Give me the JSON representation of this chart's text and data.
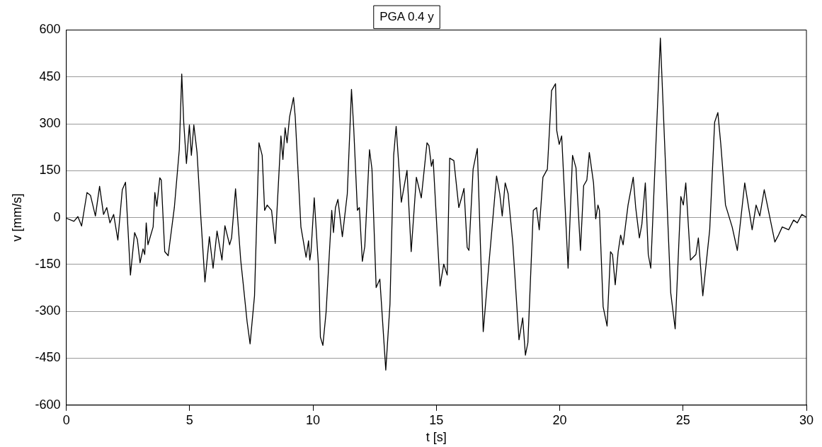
{
  "chart_data": {
    "type": "line",
    "title": "PGA 0.4 y",
    "xlabel": "t [s]",
    "ylabel": "v [mm/s]",
    "xlim": [
      0,
      30
    ],
    "xticks": [
      0,
      5,
      10,
      15,
      20,
      25,
      30
    ],
    "ylim": [
      -600,
      600
    ],
    "yticks": [
      -600,
      -450,
      -300,
      -150,
      0,
      150,
      300,
      450,
      600
    ],
    "grid": "y",
    "legend": false,
    "marker": "none",
    "line_style": "solid",
    "series": [
      {
        "color": "#000000",
        "x": [
          0,
          0.31,
          0.47,
          0.62,
          0.84,
          0.98,
          1.18,
          1.35,
          1.51,
          1.64,
          1.77,
          1.92,
          2.09,
          2.27,
          2.4,
          2.6,
          2.77,
          2.88,
          2.99,
          3.11,
          3.18,
          3.24,
          3.31,
          3.52,
          3.59,
          3.67,
          3.79,
          3.85,
          3.99,
          4.13,
          4.38,
          4.58,
          4.68,
          4.76,
          4.87,
          4.99,
          5.07,
          5.17,
          5.3,
          5.45,
          5.62,
          5.8,
          5.95,
          6.11,
          6.31,
          6.43,
          6.62,
          6.7,
          6.86,
          7.07,
          7.17,
          7.33,
          7.45,
          7.63,
          7.81,
          7.94,
          8.04,
          8.14,
          8.32,
          8.47,
          8.7,
          8.78,
          8.87,
          8.95,
          9.05,
          9.21,
          9.28,
          9.51,
          9.72,
          9.82,
          9.87,
          9.92,
          10.05,
          10.22,
          10.3,
          10.4,
          10.53,
          10.76,
          10.83,
          10.91,
          11.01,
          11.19,
          11.39,
          11.56,
          11.65,
          11.8,
          11.88,
          12,
          12.1,
          12.29,
          12.39,
          12.56,
          12.71,
          12.95,
          13.12,
          13.27,
          13.37,
          13.58,
          13.81,
          13.98,
          14.19,
          14.39,
          14.62,
          14.7,
          14.8,
          14.87,
          15.15,
          15.3,
          15.44,
          15.54,
          15.71,
          15.91,
          16.02,
          16.12,
          16.25,
          16.32,
          16.49,
          16.66,
          16.9,
          17.13,
          17.44,
          17.57,
          17.67,
          17.79,
          17.91,
          18.1,
          18.35,
          18.5,
          18.61,
          18.71,
          18.93,
          19.06,
          19.17,
          19.32,
          19.5,
          19.67,
          19.83,
          19.88,
          19.98,
          20.08,
          20.34,
          20.52,
          20.66,
          20.84,
          20.97,
          21.1,
          21.2,
          21.37,
          21.46,
          21.55,
          21.61,
          21.76,
          21.92,
          22.06,
          22.14,
          22.25,
          22.37,
          22.47,
          22.57,
          22.77,
          22.98,
          23.08,
          23.23,
          23.33,
          23.47,
          23.59,
          23.69,
          23.89,
          24.08,
          24.25,
          24.5,
          24.68,
          24.91,
          25.01,
          25.11,
          25.3,
          25.52,
          25.62,
          25.8,
          26.08,
          26.28,
          26.41,
          26.53,
          26.72,
          26.99,
          27.2,
          27.5,
          27.8,
          27.96,
          28.11,
          28.29,
          28.72,
          28.87,
          29.02,
          29.28,
          29.48,
          29.63,
          29.81,
          30
        ],
        "values": [
          -2,
          -12,
          3,
          -27,
          80,
          71,
          5,
          100,
          10,
          32,
          -17,
          10,
          -72,
          89,
          113,
          -184,
          -48,
          -70,
          -145,
          -100,
          -118,
          -17,
          -87,
          -30,
          80,
          36,
          127,
          120,
          -109,
          -122,
          32,
          217,
          459,
          305,
          173,
          296,
          199,
          296,
          208,
          5,
          -206,
          -61,
          -162,
          -43,
          -136,
          -26,
          -87,
          -65,
          92,
          -136,
          -211,
          -334,
          -404,
          -250,
          239,
          199,
          23,
          40,
          23,
          -83,
          261,
          186,
          287,
          239,
          322,
          384,
          322,
          -30,
          -127,
          -74,
          -136,
          -109,
          63,
          -153,
          -382,
          -409,
          -303,
          23,
          -48,
          32,
          58,
          -61,
          76,
          410,
          287,
          23,
          32,
          -140,
          -92,
          217,
          155,
          -224,
          -197,
          -488,
          -277,
          199,
          292,
          49,
          151,
          -109,
          129,
          63,
          239,
          230,
          164,
          186,
          -219,
          -149,
          -184,
          190,
          182,
          32,
          63,
          93,
          -96,
          -105,
          155,
          221,
          -365,
          -149,
          133,
          76,
          5,
          111,
          76,
          -83,
          -391,
          -321,
          -440,
          -400,
          23,
          32,
          -39,
          129,
          155,
          406,
          428,
          278,
          234,
          261,
          -162,
          199,
          159,
          -105,
          102,
          120,
          208,
          111,
          -4,
          40,
          23,
          -285,
          -347,
          -109,
          -118,
          -215,
          -109,
          -56,
          -87,
          40,
          129,
          32,
          -65,
          -21,
          111,
          -118,
          -162,
          217,
          574,
          243,
          -241,
          -356,
          67,
          40,
          111,
          -136,
          -118,
          -65,
          -250,
          -39,
          305,
          336,
          234,
          40,
          -30,
          -105,
          111,
          -39,
          40,
          5,
          89,
          -78,
          -56,
          -30,
          -39,
          -8,
          -17,
          10,
          1
        ]
      }
    ]
  }
}
